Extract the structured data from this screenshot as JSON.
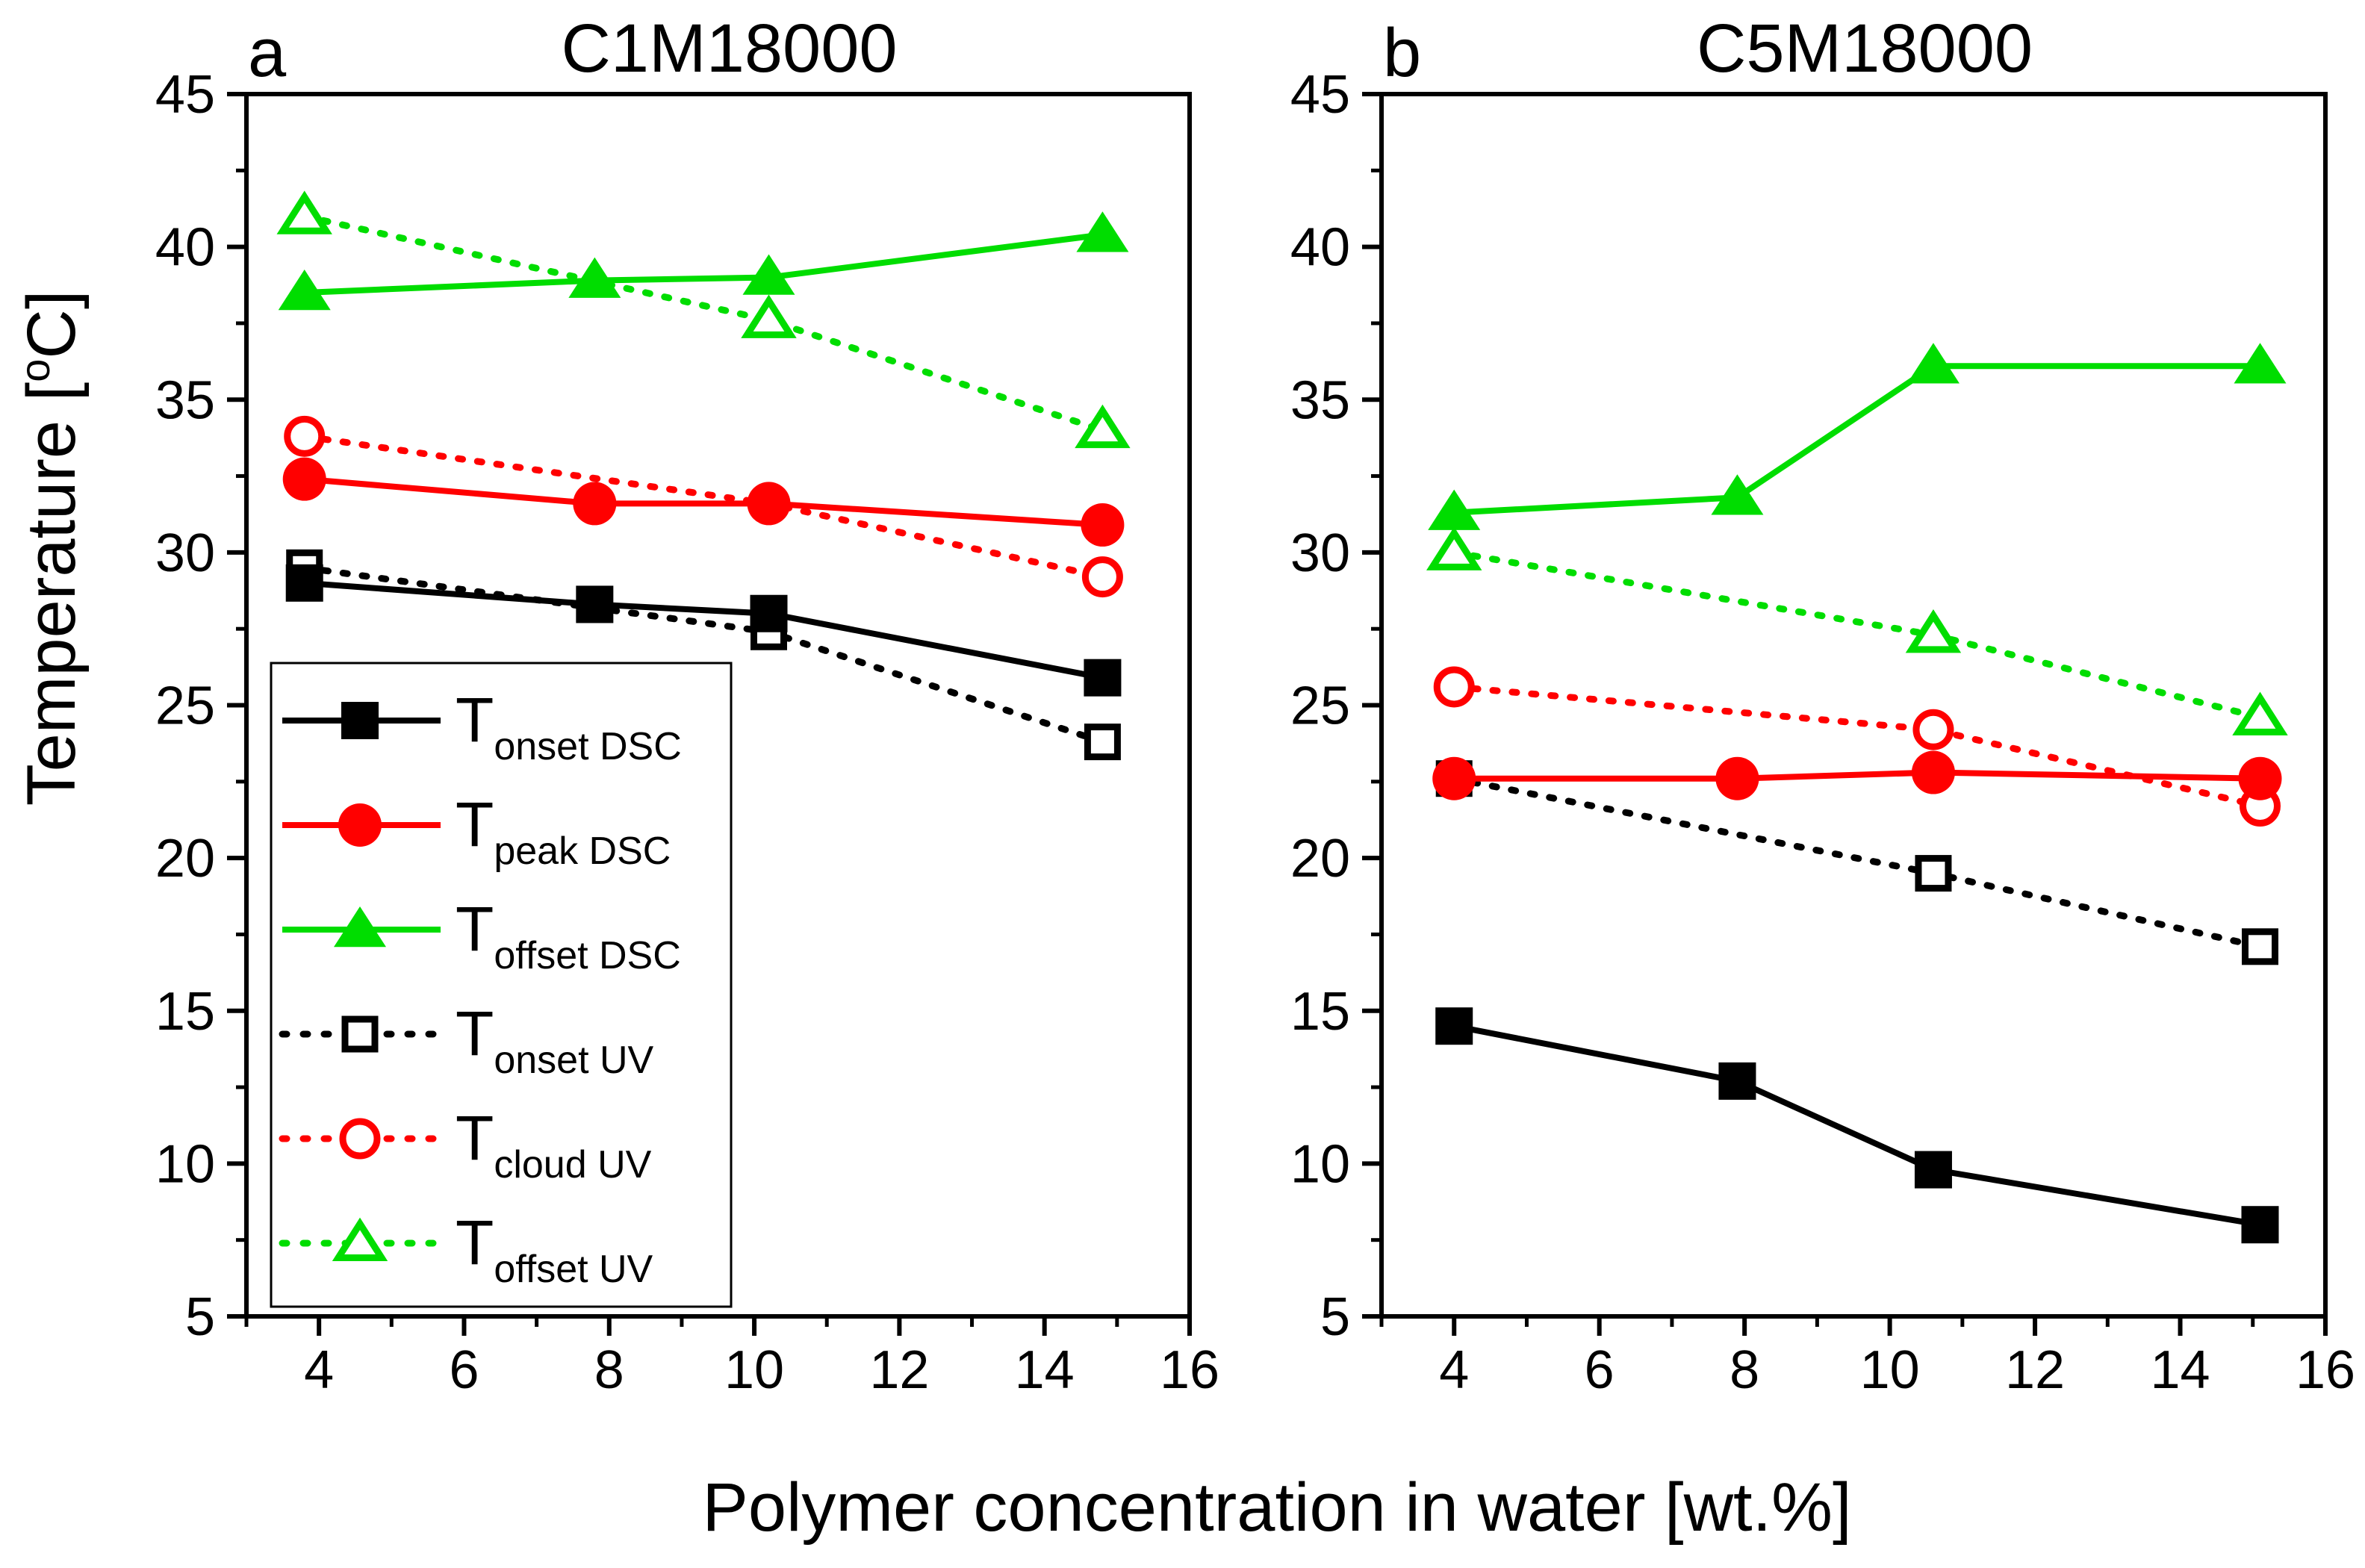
{
  "figure": {
    "shared_xlabel": "Polymer concentration in water [wt.%]",
    "shared_ylabel": "Temperature [",
    "ylabel_sup": "o",
    "ylabel_tail": "C]"
  },
  "colors": {
    "black": "#000000",
    "red": "#ff0000",
    "green": "#00dd00"
  },
  "chart_data": [
    {
      "type": "line",
      "panel_letter": "a",
      "title": "C1M18000",
      "xlabel": "Polymer concentration in water [wt.%]",
      "ylabel": "Temperature [oC]",
      "xlim": [
        3,
        16
      ],
      "ylim": [
        5,
        45
      ],
      "xticks": [
        4,
        6,
        8,
        10,
        12,
        14,
        16
      ],
      "yticks": [
        5,
        10,
        15,
        20,
        25,
        30,
        35,
        40,
        45
      ],
      "legend": true,
      "series": [
        {
          "name": "T onset DSC",
          "color": "#000000",
          "marker": "square",
          "filled": true,
          "dashed": false,
          "x": [
            3.8,
            7.8,
            10.2,
            14.8
          ],
          "y": [
            29.0,
            28.3,
            28.0,
            25.9
          ]
        },
        {
          "name": "T peak DSC",
          "color": "#ff0000",
          "marker": "circle",
          "filled": true,
          "dashed": false,
          "x": [
            3.8,
            7.8,
            10.2,
            14.8
          ],
          "y": [
            32.4,
            31.6,
            31.6,
            30.9
          ]
        },
        {
          "name": "T offset DSC",
          "color": "#00dd00",
          "marker": "triangle",
          "filled": true,
          "dashed": false,
          "x": [
            3.8,
            7.8,
            10.2,
            14.8
          ],
          "y": [
            38.5,
            38.9,
            39.0,
            40.4
          ]
        },
        {
          "name": "T onset UV",
          "color": "#000000",
          "marker": "square",
          "filled": false,
          "dashed": true,
          "x": [
            3.8,
            10.2,
            14.8
          ],
          "y": [
            29.5,
            27.4,
            23.8
          ]
        },
        {
          "name": "T cloud UV",
          "color": "#ff0000",
          "marker": "circle",
          "filled": false,
          "dashed": true,
          "x": [
            3.8,
            10.2,
            14.8
          ],
          "y": [
            33.8,
            31.6,
            29.2
          ]
        },
        {
          "name": "T offset UV",
          "color": "#00dd00",
          "marker": "triangle",
          "filled": false,
          "dashed": true,
          "x": [
            3.8,
            10.2,
            14.8
          ],
          "y": [
            41.0,
            37.6,
            34.0
          ]
        }
      ]
    },
    {
      "type": "line",
      "panel_letter": "b",
      "title": "C5M18000",
      "xlabel": "Polymer concentration in water [wt.%]",
      "ylabel": "Temperature [oC]",
      "xlim": [
        3,
        16
      ],
      "ylim": [
        5,
        45
      ],
      "xticks": [
        4,
        6,
        8,
        10,
        12,
        14,
        16
      ],
      "yticks": [
        5,
        10,
        15,
        20,
        25,
        30,
        35,
        40,
        45
      ],
      "legend": false,
      "series": [
        {
          "name": "T onset DSC",
          "color": "#000000",
          "marker": "square",
          "filled": true,
          "dashed": false,
          "x": [
            4.0,
            7.9,
            10.6,
            15.1
          ],
          "y": [
            14.5,
            12.7,
            9.8,
            8.0
          ]
        },
        {
          "name": "T peak DSC",
          "color": "#ff0000",
          "marker": "circle",
          "filled": true,
          "dashed": false,
          "x": [
            4.0,
            7.9,
            10.6,
            15.1
          ],
          "y": [
            22.6,
            22.6,
            22.8,
            22.6
          ]
        },
        {
          "name": "T offset DSC",
          "color": "#00dd00",
          "marker": "triangle",
          "filled": true,
          "dashed": false,
          "x": [
            4.0,
            7.9,
            10.6,
            15.1
          ],
          "y": [
            31.3,
            31.8,
            36.1,
            36.1
          ]
        },
        {
          "name": "T onset UV",
          "color": "#000000",
          "marker": "square",
          "filled": false,
          "dashed": true,
          "x": [
            4.0,
            10.6,
            15.1
          ],
          "y": [
            22.6,
            19.5,
            17.1
          ]
        },
        {
          "name": "T cloud UV",
          "color": "#ff0000",
          "marker": "circle",
          "filled": false,
          "dashed": true,
          "x": [
            4.0,
            10.6,
            15.1
          ],
          "y": [
            25.6,
            24.2,
            21.7
          ]
        },
        {
          "name": "T offset UV",
          "color": "#00dd00",
          "marker": "triangle",
          "filled": false,
          "dashed": true,
          "x": [
            4.0,
            10.6,
            15.1
          ],
          "y": [
            30.0,
            27.3,
            24.6
          ]
        }
      ]
    }
  ],
  "legend_entries": [
    {
      "main": "T",
      "sub": "onset DSC"
    },
    {
      "main": "T",
      "sub": "peak  DSC"
    },
    {
      "main": "T",
      "sub": "offset DSC"
    },
    {
      "main": "T",
      "sub": "onset UV"
    },
    {
      "main": " T",
      "sub": "cloud UV"
    },
    {
      "main": "T",
      "sub": "offset UV"
    }
  ]
}
